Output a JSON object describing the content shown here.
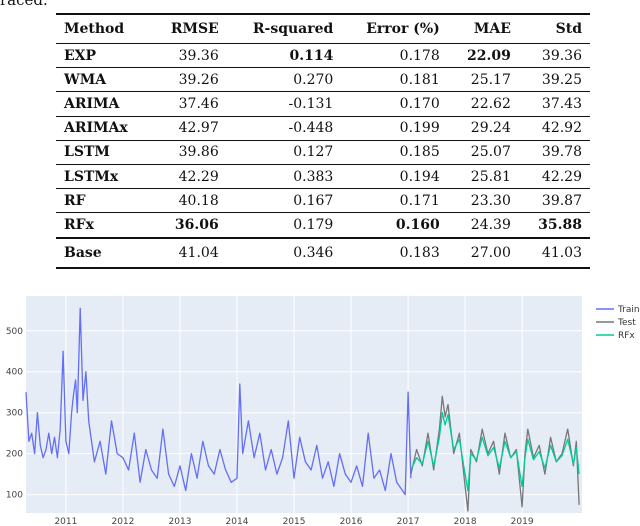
{
  "top_fragment": "raced.",
  "table": {
    "columns": [
      "Method",
      "RMSE",
      "R-squared",
      "Error (%)",
      "MAE",
      "Std"
    ],
    "rows": [
      {
        "cells": [
          "EXP",
          "39.36",
          "0.114",
          "0.178",
          "22.09",
          "39.36"
        ],
        "bold": [
          2,
          4
        ]
      },
      {
        "cells": [
          "WMA",
          "39.26",
          "0.270",
          "0.181",
          "25.17",
          "39.25"
        ],
        "bold": []
      },
      {
        "cells": [
          "ARIMA",
          "37.46",
          "-0.131",
          "0.170",
          "22.62",
          "37.43"
        ],
        "bold": []
      },
      {
        "cells": [
          "ARIMAx",
          "42.97",
          "-0.448",
          "0.199",
          "29.24",
          "42.92"
        ],
        "bold": []
      },
      {
        "cells": [
          "LSTM",
          "39.86",
          "0.127",
          "0.185",
          "25.07",
          "39.78"
        ],
        "bold": []
      },
      {
        "cells": [
          "LSTMx",
          "42.29",
          "0.383",
          "0.194",
          "25.81",
          "42.29"
        ],
        "bold": []
      },
      {
        "cells": [
          "RF",
          "40.18",
          "0.167",
          "0.171",
          "23.30",
          "39.87"
        ],
        "bold": []
      },
      {
        "cells": [
          "RFx",
          "36.06",
          "0.179",
          "0.160",
          "24.39",
          "35.88"
        ],
        "bold": [
          1,
          3,
          5
        ]
      },
      {
        "cells": [
          "Base",
          "41.04",
          "0.346",
          "0.183",
          "27.00",
          "41.03"
        ],
        "bold": []
      }
    ]
  },
  "chart_data": {
    "type": "line",
    "xlim": [
      2010.3,
      2020.05
    ],
    "ylim": [
      55,
      585
    ],
    "x_ticks": [
      2011,
      2012,
      2013,
      2014,
      2015,
      2016,
      2017,
      2018,
      2019
    ],
    "x_tick_labels": [
      "2011",
      "2012",
      "2013",
      "2014",
      "2015",
      "2016",
      "2017",
      "2018",
      "2019"
    ],
    "y_ticks": [
      100,
      200,
      300,
      400,
      500
    ],
    "y_tick_labels": [
      "100",
      "200",
      "300",
      "400",
      "500"
    ],
    "grid": true,
    "legend_position": "top-right",
    "series": [
      {
        "name": "Train",
        "color": "#636efa",
        "x": [
          2010.3,
          2010.35,
          2010.4,
          2010.45,
          2010.5,
          2010.55,
          2010.6,
          2010.65,
          2010.7,
          2010.75,
          2010.8,
          2010.85,
          2010.9,
          2010.95,
          2011.0,
          2011.05,
          2011.1,
          2011.13,
          2011.17,
          2011.2,
          2011.25,
          2011.3,
          2011.35,
          2011.4,
          2011.5,
          2011.6,
          2011.7,
          2011.8,
          2011.9,
          2012.0,
          2012.1,
          2012.2,
          2012.3,
          2012.4,
          2012.5,
          2012.6,
          2012.7,
          2012.8,
          2012.9,
          2013.0,
          2013.1,
          2013.2,
          2013.3,
          2013.4,
          2013.5,
          2013.6,
          2013.7,
          2013.8,
          2013.9,
          2014.0,
          2014.05,
          2014.1,
          2014.2,
          2014.3,
          2014.4,
          2014.5,
          2014.6,
          2014.7,
          2014.8,
          2014.9,
          2015.0,
          2015.1,
          2015.2,
          2015.3,
          2015.4,
          2015.5,
          2015.6,
          2015.7,
          2015.8,
          2015.9,
          2016.0,
          2016.1,
          2016.2,
          2016.3,
          2016.4,
          2016.5,
          2016.6,
          2016.7,
          2016.8,
          2016.9,
          2016.95,
          2017.0,
          2017.05
        ],
        "y": [
          350,
          230,
          250,
          200,
          300,
          220,
          190,
          210,
          250,
          200,
          240,
          190,
          260,
          450,
          230,
          200,
          300,
          340,
          380,
          300,
          555,
          330,
          400,
          280,
          180,
          230,
          150,
          280,
          200,
          190,
          160,
          250,
          130,
          210,
          160,
          140,
          260,
          150,
          120,
          170,
          110,
          200,
          140,
          230,
          170,
          150,
          210,
          160,
          130,
          140,
          370,
          200,
          280,
          190,
          250,
          160,
          210,
          150,
          190,
          280,
          140,
          240,
          180,
          160,
          220,
          140,
          180,
          120,
          200,
          150,
          130,
          170,
          120,
          250,
          140,
          160,
          110,
          200,
          130,
          110,
          100,
          350,
          140
        ]
      },
      {
        "name": "Test",
        "color": "#777777",
        "x": [
          2017.05,
          2017.15,
          2017.25,
          2017.35,
          2017.45,
          2017.55,
          2017.6,
          2017.65,
          2017.7,
          2017.8,
          2017.9,
          2018.0,
          2018.05,
          2018.1,
          2018.2,
          2018.3,
          2018.4,
          2018.5,
          2018.6,
          2018.7,
          2018.8,
          2018.9,
          2019.0,
          2019.05,
          2019.1,
          2019.2,
          2019.3,
          2019.4,
          2019.5,
          2019.6,
          2019.7,
          2019.8,
          2019.9,
          2019.95,
          2020.0
        ],
        "y": [
          150,
          210,
          170,
          250,
          160,
          260,
          340,
          290,
          320,
          200,
          250,
          120,
          60,
          210,
          180,
          260,
          200,
          230,
          150,
          250,
          190,
          210,
          70,
          200,
          260,
          190,
          220,
          150,
          240,
          180,
          200,
          260,
          170,
          230,
          75
        ]
      },
      {
        "name": "RFx",
        "color": "#00cc96",
        "x": [
          2017.05,
          2017.15,
          2017.25,
          2017.35,
          2017.45,
          2017.55,
          2017.6,
          2017.65,
          2017.7,
          2017.8,
          2017.9,
          2018.0,
          2018.05,
          2018.1,
          2018.2,
          2018.3,
          2018.4,
          2018.5,
          2018.6,
          2018.7,
          2018.8,
          2018.9,
          2019.0,
          2019.05,
          2019.1,
          2019.2,
          2019.3,
          2019.4,
          2019.5,
          2019.6,
          2019.7,
          2019.8,
          2019.9,
          2019.95,
          2020.0
        ],
        "y": [
          160,
          190,
          175,
          230,
          170,
          240,
          300,
          270,
          295,
          210,
          235,
          150,
          110,
          200,
          185,
          240,
          195,
          215,
          165,
          230,
          190,
          205,
          120,
          190,
          235,
          185,
          205,
          165,
          220,
          180,
          195,
          235,
          175,
          215,
          150
        ]
      }
    ]
  }
}
